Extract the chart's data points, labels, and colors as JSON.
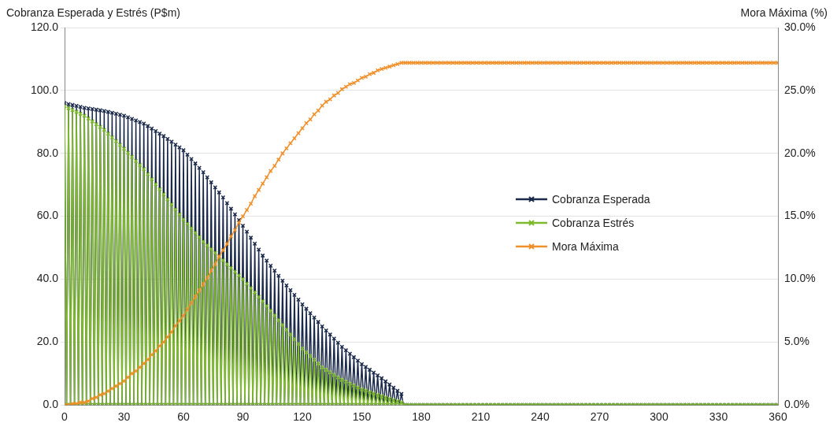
{
  "chart_data": {
    "type": "line",
    "ylabel": "Cobranza Esperada y Estrés  (P$m)",
    "y2label": "Mora Máxima (%)",
    "x": [
      0,
      1,
      2,
      3,
      4,
      5,
      6,
      7,
      8,
      9,
      10,
      11,
      12,
      13,
      14,
      15,
      16,
      17,
      18,
      19,
      20,
      21,
      22,
      23,
      24,
      25,
      26,
      27,
      28,
      29,
      30,
      31,
      32,
      33,
      34,
      35,
      36,
      37,
      38,
      39,
      40,
      41,
      42,
      43,
      44,
      45,
      46,
      47,
      48,
      49,
      50,
      51,
      52,
      53,
      54,
      55,
      56,
      57,
      58,
      59,
      60,
      61,
      62,
      63,
      64,
      65,
      66,
      67,
      68,
      69,
      70,
      71,
      72,
      73,
      74,
      75,
      76,
      77,
      78,
      79,
      80,
      81,
      82,
      83,
      84,
      85,
      86,
      87,
      88,
      89,
      90,
      91,
      92,
      93,
      94,
      95,
      96,
      97,
      98,
      99,
      100,
      101,
      102,
      103,
      104,
      105,
      106,
      107,
      108,
      109,
      110,
      111,
      112,
      113,
      114,
      115,
      116,
      117,
      118,
      119,
      120,
      121,
      122,
      123,
      124,
      125,
      126,
      127,
      128,
      129,
      130,
      131,
      132,
      133,
      134,
      135,
      136,
      137,
      138,
      139,
      140,
      141,
      142,
      143,
      144,
      145,
      146,
      147,
      148,
      149,
      150,
      151,
      152,
      153,
      154,
      155,
      156,
      157,
      158,
      159,
      160,
      161,
      162,
      163,
      164,
      165,
      166,
      167,
      168,
      169,
      170,
      171,
      172,
      174,
      176,
      178,
      180,
      182,
      184,
      186,
      188,
      190,
      192,
      194,
      196,
      198,
      200,
      202,
      204,
      206,
      208,
      210,
      212,
      214,
      216,
      218,
      220,
      222,
      224,
      226,
      228,
      230,
      232,
      234,
      236,
      238,
      240,
      242,
      244,
      246,
      248,
      250,
      252,
      254,
      256,
      258,
      260,
      262,
      264,
      266,
      268,
      270,
      272,
      274,
      276,
      278,
      280,
      282,
      284,
      286,
      288,
      290,
      292,
      294,
      296,
      298,
      300,
      302,
      304,
      306,
      308,
      310,
      312,
      314,
      316,
      318,
      320,
      322,
      324,
      326,
      328,
      330,
      332,
      334,
      336,
      338,
      340,
      342,
      344,
      346,
      348,
      350,
      352,
      354,
      356,
      358,
      360
    ],
    "series": [
      {
        "name": "Cobranza Esperada",
        "color": "#1b2a4a",
        "values": [
          96,
          0,
          95.7,
          0,
          95.4,
          0,
          95.1,
          0,
          94.8,
          0,
          94.5,
          0,
          94.3,
          0,
          94.1,
          0,
          93.9,
          0,
          93.7,
          0,
          93.5,
          0,
          93.2,
          0,
          92.9,
          0,
          92.6,
          0,
          92.3,
          0,
          92,
          0,
          91.5,
          0,
          91,
          0,
          90.5,
          0,
          90,
          0,
          89.5,
          0,
          88.7,
          0,
          87.9,
          0,
          87.1,
          0,
          86.3,
          0,
          85.5,
          0,
          84.6,
          0,
          83.7,
          0,
          82.8,
          0,
          81.9,
          0,
          81,
          0,
          79.6,
          0,
          78.2,
          0,
          76.8,
          0,
          75.4,
          0,
          74,
          0,
          72.4,
          0,
          70.8,
          0,
          69.2,
          0,
          67.6,
          0,
          66,
          0,
          64.2,
          0,
          62.4,
          0,
          60.6,
          0,
          58.8,
          0,
          57,
          0,
          55.1,
          0,
          53.2,
          0,
          51.3,
          0,
          49.4,
          0,
          47.5,
          0,
          45.9,
          0,
          44.3,
          0,
          42.7,
          0,
          41.1,
          0,
          39.5,
          0,
          38,
          0,
          36.5,
          0,
          35,
          0,
          33.5,
          0,
          32,
          0,
          30.6,
          0,
          29.2,
          0,
          27.8,
          0,
          26.4,
          0,
          25,
          0,
          23.7,
          0,
          22.4,
          0,
          21.1,
          0,
          19.8,
          0,
          18.5,
          0,
          17.4,
          0,
          16.3,
          0,
          15.2,
          0,
          14.1,
          0,
          13,
          0,
          12.1,
          0,
          11.2,
          0,
          10.3,
          0,
          9.4,
          0,
          8.5,
          0,
          7.5,
          0,
          6.5,
          0,
          5.5,
          0,
          4.5,
          0,
          3.5,
          0,
          0,
          0,
          0,
          0,
          0,
          0,
          0,
          0,
          0,
          0,
          0,
          0,
          0,
          0,
          0,
          0,
          0,
          0,
          0,
          0,
          0,
          0,
          0,
          0,
          0,
          0,
          0,
          0,
          0,
          0,
          0,
          0,
          0,
          0,
          0,
          0,
          0,
          0,
          0,
          0,
          0,
          0,
          0,
          0,
          0,
          0,
          0,
          0,
          0,
          0,
          0,
          0,
          0,
          0,
          0,
          0,
          0,
          0,
          0,
          0,
          0,
          0,
          0,
          0,
          0,
          0,
          0,
          0,
          0,
          0,
          0,
          0,
          0,
          0,
          0,
          0,
          0,
          0,
          0,
          0,
          0,
          0,
          0,
          0,
          0,
          0,
          0,
          0,
          0,
          0,
          0,
          0,
          0,
          0,
          0
        ]
      },
      {
        "name": "Cobranza Estrés",
        "color": "#7fba2e",
        "values": [
          95,
          0,
          94.4,
          0,
          93.8,
          0,
          93.2,
          0,
          92.6,
          0,
          92,
          0,
          91.1,
          0,
          90.2,
          0,
          89.3,
          0,
          88.4,
          0,
          87.5,
          0,
          86.3,
          0,
          85.1,
          0,
          83.9,
          0,
          82.7,
          0,
          81.5,
          0,
          80.2,
          0,
          78.9,
          0,
          77.6,
          0,
          76.3,
          0,
          75,
          0,
          73.4,
          0,
          71.8,
          0,
          70.2,
          0,
          68.6,
          0,
          67,
          0,
          65.4,
          0,
          63.8,
          0,
          62.2,
          0,
          60.6,
          0,
          59,
          0,
          57.6,
          0,
          56.2,
          0,
          54.8,
          0,
          53.4,
          0,
          52,
          0,
          50.8,
          0,
          49.6,
          0,
          48.4,
          0,
          47.2,
          0,
          46,
          0,
          44.8,
          0,
          43.6,
          0,
          42.4,
          0,
          41.2,
          0,
          40,
          0,
          38.6,
          0,
          37.2,
          0,
          35.8,
          0,
          34.4,
          0,
          33,
          0,
          31.5,
          0,
          30,
          0,
          28.5,
          0,
          27,
          0,
          25.5,
          0,
          24,
          0,
          22.5,
          0,
          21,
          0,
          19.5,
          0,
          18,
          0,
          16.8,
          0,
          15.6,
          0,
          14.4,
          0,
          13.2,
          0,
          12,
          0,
          11.2,
          0,
          10.4,
          0,
          9.6,
          0,
          8.8,
          0,
          8,
          0,
          7.4,
          0,
          6.8,
          0,
          6.2,
          0,
          5.6,
          0,
          5,
          0,
          4.6,
          0,
          4.1,
          0,
          3.7,
          0,
          3.2,
          0,
          2.8,
          0,
          2.4,
          0,
          2,
          0,
          1.6,
          0,
          1.2,
          0,
          0.8,
          0,
          0,
          0,
          0,
          0,
          0,
          0,
          0,
          0,
          0,
          0,
          0,
          0,
          0,
          0,
          0,
          0,
          0,
          0,
          0,
          0,
          0,
          0,
          0,
          0,
          0,
          0,
          0,
          0,
          0,
          0,
          0,
          0,
          0,
          0,
          0,
          0,
          0,
          0,
          0,
          0,
          0,
          0,
          0,
          0,
          0,
          0,
          0,
          0,
          0,
          0,
          0,
          0,
          0,
          0,
          0,
          0,
          0,
          0,
          0,
          0,
          0,
          0,
          0,
          0,
          0,
          0,
          0,
          0,
          0,
          0,
          0,
          0,
          0,
          0,
          0,
          0,
          0,
          0,
          0,
          0,
          0,
          0,
          0,
          0,
          0,
          0,
          0,
          0,
          0,
          0,
          0,
          0,
          0,
          0,
          0
        ]
      },
      {
        "name": "Mora Máxima",
        "color": "#f0902a",
        "axis": "y2",
        "x": [
          0,
          2,
          4,
          6,
          8,
          10,
          12,
          14,
          16,
          18,
          20,
          22,
          24,
          26,
          28,
          30,
          32,
          34,
          36,
          38,
          40,
          42,
          44,
          46,
          48,
          50,
          52,
          54,
          56,
          58,
          60,
          62,
          64,
          66,
          68,
          70,
          72,
          74,
          76,
          78,
          80,
          82,
          84,
          86,
          88,
          90,
          92,
          94,
          96,
          98,
          100,
          102,
          104,
          106,
          108,
          110,
          112,
          114,
          116,
          118,
          120,
          122,
          124,
          126,
          128,
          130,
          132,
          134,
          136,
          138,
          140,
          142,
          144,
          146,
          148,
          150,
          152,
          154,
          156,
          158,
          160,
          162,
          164,
          166,
          168,
          170,
          172,
          174,
          176,
          178,
          180,
          182,
          184,
          186,
          188,
          190,
          192,
          194,
          196,
          198,
          200,
          202,
          204,
          206,
          208,
          210,
          212,
          214,
          216,
          218,
          220,
          222,
          224,
          226,
          228,
          230,
          232,
          234,
          236,
          238,
          240,
          242,
          244,
          246,
          248,
          250,
          252,
          254,
          256,
          258,
          260,
          262,
          264,
          266,
          268,
          270,
          272,
          274,
          276,
          278,
          280,
          282,
          284,
          286,
          288,
          290,
          292,
          294,
          296,
          298,
          300,
          302,
          304,
          306,
          308,
          310,
          312,
          314,
          316,
          318,
          320,
          322,
          324,
          326,
          328,
          330,
          332,
          334,
          336,
          338,
          340,
          342,
          344,
          346,
          348,
          350,
          352,
          354,
          356,
          358,
          360
        ],
        "values": [
          0,
          0,
          0.1,
          0.1,
          0.2,
          0.2,
          0.3,
          0.5,
          0.6,
          0.8,
          0.9,
          1.1,
          1.3,
          1.5,
          1.7,
          1.9,
          2.2,
          2.5,
          2.7,
          3,
          3.3,
          3.6,
          4,
          4.3,
          4.7,
          5,
          5.4,
          5.8,
          6.3,
          6.7,
          7.1,
          7.6,
          8.1,
          8.6,
          9.1,
          9.6,
          10.1,
          10.7,
          11.2,
          11.8,
          12.3,
          12.8,
          13.4,
          13.9,
          14.5,
          15,
          15.5,
          16,
          16.6,
          17.1,
          17.6,
          18.1,
          18.6,
          19,
          19.5,
          20,
          20.4,
          20.8,
          21.2,
          21.6,
          22,
          22.4,
          22.7,
          23.1,
          23.4,
          23.8,
          24.1,
          24.3,
          24.6,
          24.8,
          25.1,
          25.3,
          25.5,
          25.6,
          25.8,
          26,
          26.1,
          26.3,
          26.4,
          26.6,
          26.7,
          26.8,
          26.9,
          27,
          27.1,
          27.2,
          27.2,
          27.2,
          27.2,
          27.2,
          27.2,
          27.2,
          27.2,
          27.2,
          27.2,
          27.2,
          27.2,
          27.2,
          27.2,
          27.2,
          27.2,
          27.2,
          27.2,
          27.2,
          27.2,
          27.2,
          27.2,
          27.2,
          27.2,
          27.2,
          27.2,
          27.2,
          27.2,
          27.2,
          27.2,
          27.2,
          27.2,
          27.2,
          27.2,
          27.2,
          27.2,
          27.2,
          27.2,
          27.2,
          27.2,
          27.2,
          27.2,
          27.2,
          27.2,
          27.2,
          27.2,
          27.2,
          27.2,
          27.2,
          27.2,
          27.2,
          27.2,
          27.2,
          27.2,
          27.2,
          27.2,
          27.2,
          27.2,
          27.2,
          27.2,
          27.2,
          27.2,
          27.2,
          27.2,
          27.2,
          27.2,
          27.2,
          27.2,
          27.2,
          27.2,
          27.2,
          27.2,
          27.2,
          27.2,
          27.2,
          27.2,
          27.2,
          27.2,
          27.2,
          27.2,
          27.2,
          27.2,
          27.2,
          27.2,
          27.2,
          27.2,
          27.2,
          27.2,
          27.2,
          27.2,
          27.2,
          27.2,
          27.2,
          27.2,
          27.2,
          27.2
        ]
      }
    ],
    "xlim": [
      0,
      360
    ],
    "xticks": [
      0,
      30,
      60,
      90,
      120,
      150,
      180,
      210,
      240,
      270,
      300,
      330,
      360
    ],
    "ylim": [
      0,
      120
    ],
    "yticks": [
      {
        "value": 0,
        "label": "0.0"
      },
      {
        "value": 20,
        "label": "20.0"
      },
      {
        "value": 40,
        "label": "40.0"
      },
      {
        "value": 60,
        "label": "60.0"
      },
      {
        "value": 80,
        "label": "80.0"
      },
      {
        "value": 100,
        "label": "100.0"
      },
      {
        "value": 120,
        "label": "120.0"
      }
    ],
    "y2lim": [
      0,
      30
    ],
    "y2ticks": [
      {
        "value": 0,
        "label": "0.0%"
      },
      {
        "value": 5,
        "label": "5.0%"
      },
      {
        "value": 10,
        "label": "10.0%"
      },
      {
        "value": 15,
        "label": "15.0%"
      },
      {
        "value": 20,
        "label": "20.0%"
      },
      {
        "value": 25,
        "label": "25.0%"
      },
      {
        "value": 30,
        "label": "30.0%"
      }
    ],
    "grid": "y",
    "legend": "right",
    "marker": "cross",
    "line_style": "solid"
  }
}
